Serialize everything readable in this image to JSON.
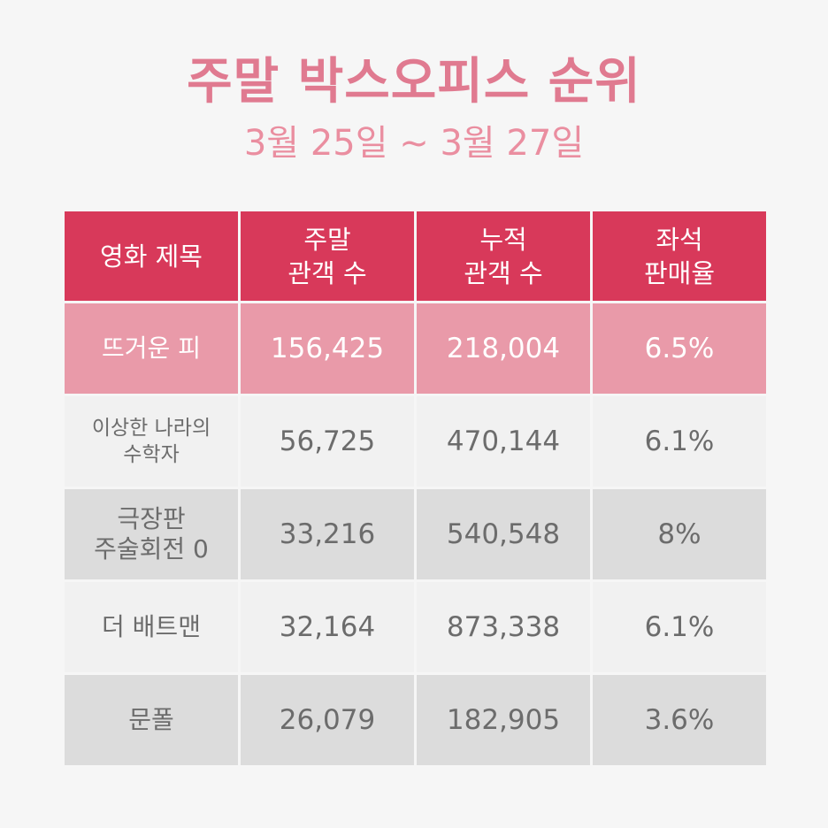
{
  "title": "주말 박스오피스 순위",
  "subtitle": "3월 25일 ~ 3월 27일",
  "colors": {
    "title": "#e07a90",
    "subtitle": "#ea8ea0",
    "header_bg": "#d8395a",
    "highlight_row_bg": "#e99aa9",
    "light_row_bg": "#f1f1f1",
    "dark_row_bg": "#dcdcdc",
    "text_gray": "#6c6c6c"
  },
  "table": {
    "headers": [
      {
        "line1": "영화 제목",
        "line2": ""
      },
      {
        "line1": "주말",
        "line2": "관객 수"
      },
      {
        "line1": "누적",
        "line2": "관객 수"
      },
      {
        "line1": "좌석",
        "line2": "판매율"
      }
    ],
    "rows": [
      {
        "title_line1": "뜨거운 피",
        "title_line2": "",
        "weekend": "156,425",
        "cumulative": "218,004",
        "seat_rate": "6.5%"
      },
      {
        "title_line1": "이상한 나라의",
        "title_line2": "수학자",
        "weekend": "56,725",
        "cumulative": "470,144",
        "seat_rate": "6.1%"
      },
      {
        "title_line1": "극장판",
        "title_line2": "주술회전 0",
        "weekend": "33,216",
        "cumulative": "540,548",
        "seat_rate": "8%"
      },
      {
        "title_line1": "더 배트맨",
        "title_line2": "",
        "weekend": "32,164",
        "cumulative": "873,338",
        "seat_rate": "6.1%"
      },
      {
        "title_line1": "문폴",
        "title_line2": "",
        "weekend": "26,079",
        "cumulative": "182,905",
        "seat_rate": "3.6%"
      }
    ]
  }
}
